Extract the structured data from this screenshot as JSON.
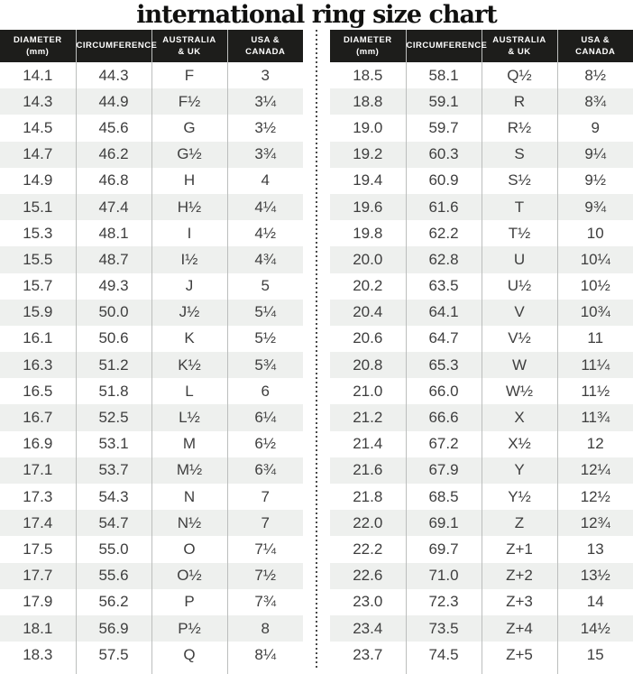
{
  "chart_data": {
    "type": "table",
    "title": "international ring size chart",
    "columns": [
      "DIAMETER\n(mm)",
      "CIRCUMFERENCE",
      "AUSTRALIA\n& UK",
      "USA &\nCANADA"
    ],
    "colors": {
      "header_background": "#1d1d1b",
      "header_text": "#ffffff",
      "body_text": "#3e3e3e",
      "row_stripe": "#eef0ee",
      "column_separator": "#bcbebd",
      "dotted_divider": "#4a4a4a"
    },
    "tables": {
      "left": {
        "rows": [
          [
            "14.1",
            "44.3",
            "F",
            "3"
          ],
          [
            "14.3",
            "44.9",
            "F½",
            "3¼"
          ],
          [
            "14.5",
            "45.6",
            "G",
            "3½"
          ],
          [
            "14.7",
            "46.2",
            "G½",
            "3¾"
          ],
          [
            "14.9",
            "46.8",
            "H",
            "4"
          ],
          [
            "15.1",
            "47.4",
            "H½",
            "4¼"
          ],
          [
            "15.3",
            "48.1",
            "I",
            "4½"
          ],
          [
            "15.5",
            "48.7",
            "I½",
            "4¾"
          ],
          [
            "15.7",
            "49.3",
            "J",
            "5"
          ],
          [
            "15.9",
            "50.0",
            "J½",
            "5¼"
          ],
          [
            "16.1",
            "50.6",
            "K",
            "5½"
          ],
          [
            "16.3",
            "51.2",
            "K½",
            "5¾"
          ],
          [
            "16.5",
            "51.8",
            "L",
            "6"
          ],
          [
            "16.7",
            "52.5",
            "L½",
            "6¼"
          ],
          [
            "16.9",
            "53.1",
            "M",
            "6½"
          ],
          [
            "17.1",
            "53.7",
            "M½",
            "6¾"
          ],
          [
            "17.3",
            "54.3",
            "N",
            "7"
          ],
          [
            "17.4",
            "54.7",
            "N½",
            "7"
          ],
          [
            "17.5",
            "55.0",
            "O",
            "7¼"
          ],
          [
            "17.7",
            "55.6",
            "O½",
            "7½"
          ],
          [
            "17.9",
            "56.2",
            "P",
            "7¾"
          ],
          [
            "18.1",
            "56.9",
            "P½",
            "8"
          ],
          [
            "18.3",
            "57.5",
            "Q",
            "8¼"
          ]
        ]
      },
      "right": {
        "rows": [
          [
            "18.5",
            "58.1",
            "Q½",
            "8½"
          ],
          [
            "18.8",
            "59.1",
            "R",
            "8¾"
          ],
          [
            "19.0",
            "59.7",
            "R½",
            "9"
          ],
          [
            "19.2",
            "60.3",
            "S",
            "9¼"
          ],
          [
            "19.4",
            "60.9",
            "S½",
            "9½"
          ],
          [
            "19.6",
            "61.6",
            "T",
            "9¾"
          ],
          [
            "19.8",
            "62.2",
            "T½",
            "10"
          ],
          [
            "20.0",
            "62.8",
            "U",
            "10¼"
          ],
          [
            "20.2",
            "63.5",
            "U½",
            "10½"
          ],
          [
            "20.4",
            "64.1",
            "V",
            "10¾"
          ],
          [
            "20.6",
            "64.7",
            "V½",
            "11"
          ],
          [
            "20.8",
            "65.3",
            "W",
            "11¼"
          ],
          [
            "21.0",
            "66.0",
            "W½",
            "11½"
          ],
          [
            "21.2",
            "66.6",
            "X",
            "11¾"
          ],
          [
            "21.4",
            "67.2",
            "X½",
            "12"
          ],
          [
            "21.6",
            "67.9",
            "Y",
            "12¼"
          ],
          [
            "21.8",
            "68.5",
            "Y½",
            "12½"
          ],
          [
            "22.0",
            "69.1",
            "Z",
            "12¾"
          ],
          [
            "22.2",
            "69.7",
            "Z+1",
            "13"
          ],
          [
            "22.6",
            "71.0",
            "Z+2",
            "13½"
          ],
          [
            "23.0",
            "72.3",
            "Z+3",
            "14"
          ],
          [
            "23.4",
            "73.5",
            "Z+4",
            "14½"
          ],
          [
            "23.7",
            "74.5",
            "Z+5",
            "15"
          ]
        ]
      }
    }
  }
}
